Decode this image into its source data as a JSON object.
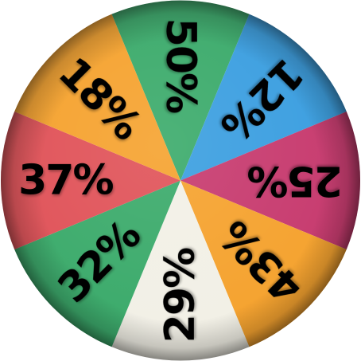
{
  "wheel": {
    "segments": [
      {
        "label": "50%",
        "color": "#3aaa6a"
      },
      {
        "label": "12%",
        "color": "#3a9ee0"
      },
      {
        "label": "25%",
        "color": "#c73a6e"
      },
      {
        "label": "43%",
        "color": "#f5a22e"
      },
      {
        "label": "29%",
        "color": "#f2f0e6"
      },
      {
        "label": "32%",
        "color": "#3aaa6a"
      },
      {
        "label": "37%",
        "color": "#e05258"
      },
      {
        "label": "18%",
        "color": "#f5a22e"
      }
    ]
  }
}
